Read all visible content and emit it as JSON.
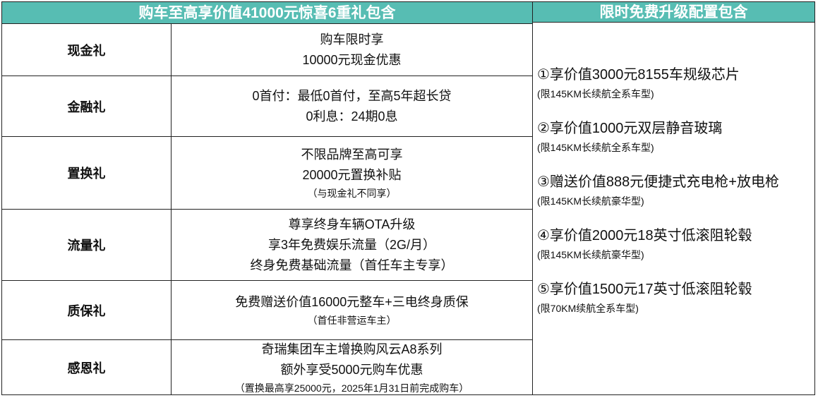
{
  "left": {
    "title": "购车至高享价值41000元惊喜6重礼包含",
    "rows": [
      {
        "label": "现金礼",
        "lines": [
          "购车限时享",
          "10000元现金优惠"
        ],
        "note": ""
      },
      {
        "label": "金融礼",
        "lines": [
          "0首付：最低0首付，至高5年超长贷",
          "0利息：24期0息"
        ],
        "note": ""
      },
      {
        "label": "置换礼",
        "lines": [
          "不限品牌至高可享",
          "20000元置换补贴"
        ],
        "note": "（与现金礼不同享）"
      },
      {
        "label": "流量礼",
        "lines": [
          "尊享终身车辆OTA升级",
          "享3年免费娱乐流量（2G/月）",
          "终身免费基础流量（首任车主专享）"
        ],
        "note": ""
      },
      {
        "label": "质保礼",
        "lines": [
          "免费赠送价值16000元整车+三电终身质保"
        ],
        "note": "（首任非营运车主）"
      },
      {
        "label": "感恩礼",
        "lines": [
          "奇瑞集团车主增换购风云A8系列",
          "额外享受5000元购车优惠"
        ],
        "note": "（置换最高享25000元，2025年1月31日前完成购车）"
      }
    ]
  },
  "right": {
    "title": "限时免费升级配置包含",
    "items": [
      {
        "text": "①享价值3000元8155车规级芯片",
        "note": "(限145KM长续航全系车型)"
      },
      {
        "text": "②享价值1000元双层静音玻璃",
        "note": "(限145KM长续航全系车型)"
      },
      {
        "text": "③赠送价值888元便捷式充电枪+放电枪",
        "note": "(限145KM长续航豪华型)"
      },
      {
        "text": "④享价值2000元18英寸低滚阻轮毂",
        "note": "(限145KM长续航豪华型)"
      },
      {
        "text": "⑤享价值1500元17英寸低滚阻轮毂",
        "note": "(限70KM续航全系车型)"
      }
    ]
  },
  "colors": {
    "header": "#57bdb3"
  }
}
